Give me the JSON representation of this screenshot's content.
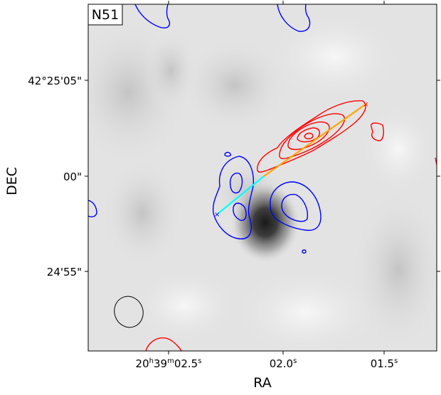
{
  "chart_data": {
    "type": "contour",
    "panel_label": "N51",
    "xlabel": "RA",
    "ylabel": "DEC",
    "x_ticks": [
      {
        "label_main": "20",
        "label_h": "h",
        "label_mid": "39",
        "label_m": "m",
        "label_sec": "02.5",
        "label_s": "s",
        "value": 2.5
      },
      {
        "label_main": "02.0",
        "label_s": "s",
        "value": 2.0
      },
      {
        "label_main": "01.5",
        "label_s": "s",
        "value": 1.5
      }
    ],
    "y_ticks": [
      {
        "label": "42°25'05\"",
        "value": 5
      },
      {
        "label": "00\"",
        "value": 0
      },
      {
        "label": "24'55\"",
        "value": -5
      }
    ],
    "x_range_sec": [
      2.99,
      1.25
    ],
    "y_range_arcsec": [
      9.1,
      -9.1
    ],
    "background": "greyscale continuum map with a dark compact source near RA 02.06s, DEC 42°24'58.7\"",
    "red_contours_color": "#ff0000",
    "blue_contours_color": "#0000ff",
    "outflow_lines": [
      {
        "name": "redshifted lobe axis",
        "color": "#ffa500",
        "from": [
          2.06,
          0.0
        ],
        "to": [
          1.6,
          3.8
        ]
      },
      {
        "name": "blueshifted lobe axis",
        "color": "#00ffff",
        "from": [
          2.06,
          0.0
        ],
        "to": [
          2.3,
          -2.0
        ]
      }
    ],
    "beam_ellipse": {
      "color": "#000000"
    }
  }
}
